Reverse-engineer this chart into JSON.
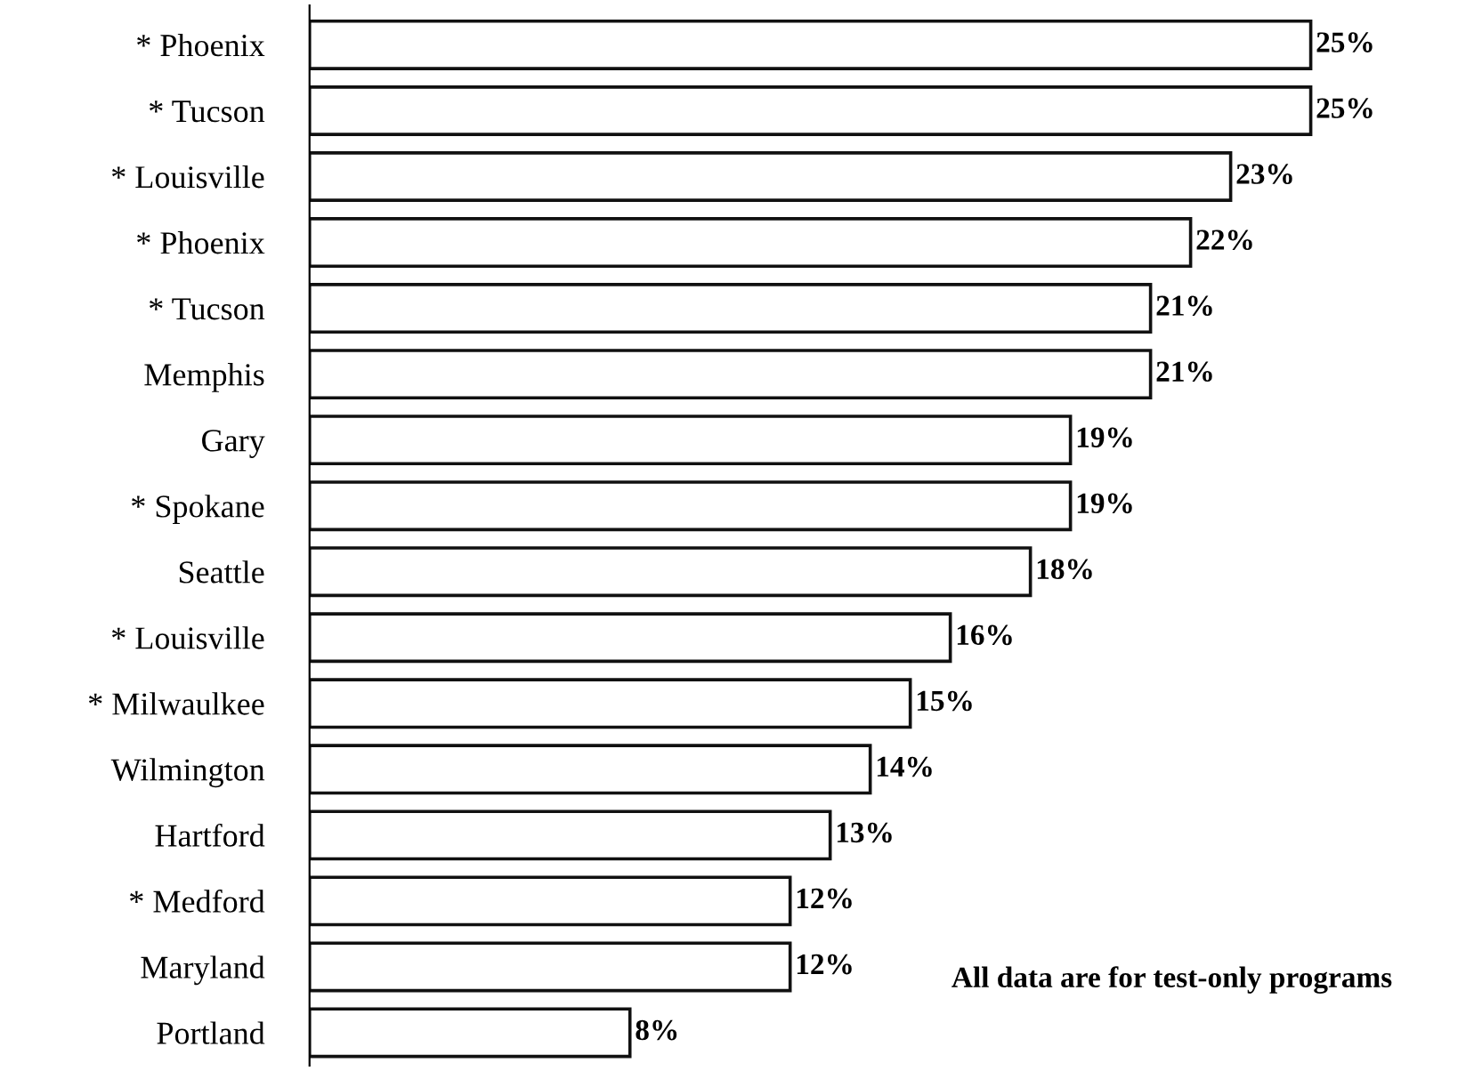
{
  "chart_data": {
    "type": "bar",
    "orientation": "horizontal",
    "categories": [
      "* Phoenix",
      "* Tucson",
      "* Louisville",
      "* Phoenix",
      "* Tucson",
      "Memphis",
      "Gary",
      "* Spokane",
      "Seattle",
      "* Louisville",
      "* Milwaulkee",
      "Wilmington",
      "Hartford",
      "* Medford",
      "Maryland",
      "Portland"
    ],
    "values": [
      25,
      25,
      23,
      22,
      21,
      21,
      19,
      19,
      18,
      16,
      15,
      14,
      13,
      12,
      12,
      8
    ],
    "value_labels": [
      "25%",
      "25%",
      "23%",
      "22%",
      "21%",
      "21%",
      "19%",
      "19%",
      "18%",
      "16%",
      "15%",
      "14%",
      "13%",
      "12%",
      "12%",
      "8%"
    ],
    "color": "#ffffff",
    "annotations": [
      "All data are for test-only programs"
    ],
    "grid": false,
    "legend": false
  }
}
